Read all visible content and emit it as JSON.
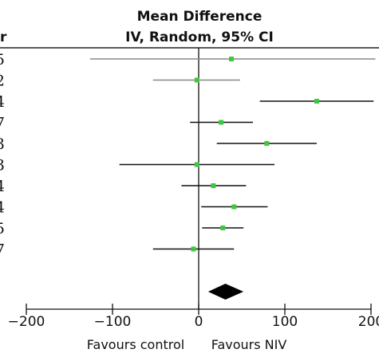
{
  "header": {
    "title": "Mean Difference",
    "subtitle": "IV, Random, 95% CI",
    "column_fragment": "r"
  },
  "chart_data": {
    "type": "forest",
    "x_axis": {
      "xlim": [
        -200,
        200
      ],
      "ticks": [
        -200,
        -100,
        0,
        100,
        200
      ],
      "tick_labels": [
        "−200",
        "−100",
        "0",
        "100",
        "200"
      ],
      "left_label": "Favours control",
      "right_label": "Favours NIV",
      "null_line": 0
    },
    "studies": [
      {
        "row_label": "5",
        "mean": 38,
        "ci_low": -126,
        "ci_high": 205,
        "square_color": "#3ec83e",
        "ci_color": "#888888"
      },
      {
        "row_label": "2",
        "mean": -2,
        "ci_low": -53,
        "ci_high": 48,
        "square_color": "#3ec83e",
        "ci_color": "#888888"
      },
      {
        "row_label": "4",
        "mean": 137,
        "ci_low": 71,
        "ci_high": 203,
        "square_color": "#3ec83e",
        "ci_color": "#111111"
      },
      {
        "row_label": "7",
        "mean": 26,
        "ci_low": -10,
        "ci_high": 63,
        "square_color": "#3ec83e",
        "ci_color": "#111111"
      },
      {
        "row_label": "3",
        "mean": 79,
        "ci_low": 21,
        "ci_high": 137,
        "square_color": "#3ec83e",
        "ci_color": "#111111"
      },
      {
        "row_label": "3",
        "mean": -2,
        "ci_low": -92,
        "ci_high": 88,
        "square_color": "#3ec83e",
        "ci_color": "#111111"
      },
      {
        "row_label": "4",
        "mean": 17,
        "ci_low": -20,
        "ci_high": 55,
        "square_color": "#3ec83e",
        "ci_color": "#111111"
      },
      {
        "row_label": "4",
        "mean": 41,
        "ci_low": 3,
        "ci_high": 80,
        "square_color": "#3ec83e",
        "ci_color": "#111111"
      },
      {
        "row_label": "5",
        "mean": 28,
        "ci_low": 4,
        "ci_high": 52,
        "square_color": "#3ec83e",
        "ci_color": "#111111"
      },
      {
        "row_label": "7",
        "mean": -6,
        "ci_low": -53,
        "ci_high": 41,
        "square_color": "#3ec83e",
        "ci_color": "#111111"
      }
    ],
    "pooled": {
      "mean": 31,
      "ci_low": 11,
      "ci_high": 52,
      "color": "#000000"
    }
  }
}
